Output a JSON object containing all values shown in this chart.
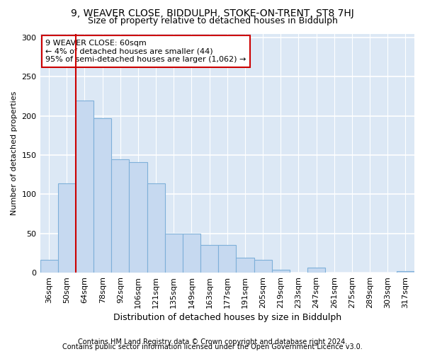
{
  "title1": "9, WEAVER CLOSE, BIDDULPH, STOKE-ON-TRENT, ST8 7HJ",
  "title2": "Size of property relative to detached houses in Biddulph",
  "xlabel": "Distribution of detached houses by size in Biddulph",
  "ylabel": "Number of detached properties",
  "categories": [
    "36sqm",
    "50sqm",
    "64sqm",
    "78sqm",
    "92sqm",
    "106sqm",
    "121sqm",
    "135sqm",
    "149sqm",
    "163sqm",
    "177sqm",
    "191sqm",
    "205sqm",
    "219sqm",
    "233sqm",
    "247sqm",
    "261sqm",
    "275sqm",
    "289sqm",
    "303sqm",
    "317sqm"
  ],
  "values": [
    16,
    114,
    220,
    197,
    145,
    141,
    114,
    50,
    50,
    35,
    35,
    19,
    16,
    4,
    0,
    6,
    0,
    0,
    0,
    0,
    2
  ],
  "bar_color": "#c6d9f0",
  "bar_edge_color": "#7eb0d9",
  "vline_color": "#cc0000",
  "vline_pos": 2.0,
  "annotation_text": "9 WEAVER CLOSE: 60sqm\n← 4% of detached houses are smaller (44)\n95% of semi-detached houses are larger (1,062) →",
  "annotation_box_facecolor": "#ffffff",
  "annotation_box_edgecolor": "#cc0000",
  "ylim": [
    0,
    305
  ],
  "yticks": [
    0,
    50,
    100,
    150,
    200,
    250,
    300
  ],
  "footer1": "Contains HM Land Registry data © Crown copyright and database right 2024.",
  "footer2": "Contains public sector information licensed under the Open Government Licence v3.0.",
  "background_color": "#ffffff",
  "plot_bg_color": "#dce8f5",
  "grid_color": "#ffffff",
  "title1_fontsize": 10,
  "title2_fontsize": 9,
  "xlabel_fontsize": 9,
  "ylabel_fontsize": 8,
  "tick_fontsize": 8,
  "footer_fontsize": 7,
  "ann_fontsize": 8
}
